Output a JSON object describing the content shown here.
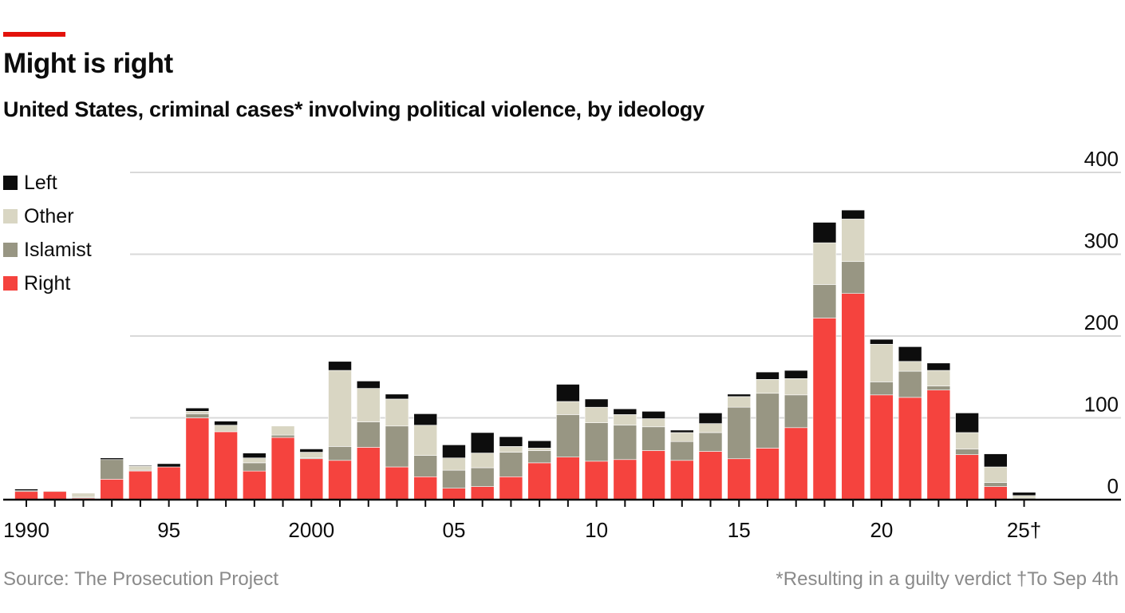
{
  "title": "Might is right",
  "subtitle": "United States, criminal cases* involving political violence, by ideology",
  "source": "Source: The Prosecution Project",
  "footnote": "*Resulting in a guilty verdict †To Sep 4th",
  "colors": {
    "Left": "#0d0d0d",
    "Other": "#d9d6c3",
    "Islamist": "#989683",
    "Right": "#f5433e",
    "accent": "#e3120b"
  },
  "chart_data": {
    "type": "bar",
    "stacked": true,
    "title": "Might is right",
    "subtitle": "United States, criminal cases* involving political violence, by ideology",
    "xlabel": "",
    "ylabel": "",
    "ylim": [
      0,
      400
    ],
    "y_ticks": [
      0,
      100,
      200,
      300,
      400
    ],
    "x_tick_years": [
      1990,
      1995,
      2000,
      2005,
      2010,
      2015,
      2020,
      2025
    ],
    "x_tick_labels": [
      "1990",
      "95",
      "2000",
      "05",
      "10",
      "15",
      "20",
      "25†"
    ],
    "grid": true,
    "legend_placement": "top-left",
    "legend": [
      "Left",
      "Other",
      "Islamist",
      "Right"
    ],
    "categories": [
      1990,
      1991,
      1992,
      1993,
      1994,
      1995,
      1996,
      1997,
      1998,
      1999,
      2000,
      2001,
      2002,
      2003,
      2004,
      2005,
      2006,
      2007,
      2008,
      2009,
      2010,
      2011,
      2012,
      2013,
      2014,
      2015,
      2016,
      2017,
      2018,
      2019,
      2020,
      2021,
      2022,
      2023,
      2024,
      2025
    ],
    "series": [
      {
        "name": "Right",
        "values": [
          10,
          10,
          2,
          25,
          35,
          40,
          100,
          83,
          35,
          76,
          50,
          48,
          64,
          40,
          28,
          14,
          16,
          28,
          45,
          52,
          47,
          49,
          60,
          48,
          59,
          50,
          63,
          88,
          222,
          252,
          128,
          125,
          134,
          55,
          16,
          0
        ]
      },
      {
        "name": "Islamist",
        "values": [
          1,
          0,
          1,
          24,
          1,
          0,
          5,
          0,
          10,
          3,
          1,
          17,
          31,
          50,
          26,
          22,
          23,
          30,
          15,
          52,
          47,
          42,
          29,
          23,
          23,
          63,
          67,
          40,
          41,
          39,
          16,
          32,
          5,
          7,
          5,
          2
        ]
      },
      {
        "name": "Other",
        "values": [
          0,
          1,
          5,
          0,
          5,
          0,
          3,
          8,
          6,
          11,
          7,
          93,
          41,
          33,
          37,
          15,
          18,
          7,
          3,
          16,
          19,
          13,
          10,
          11,
          11,
          13,
          17,
          20,
          51,
          52,
          46,
          12,
          19,
          20,
          19,
          3
        ]
      },
      {
        "name": "Left",
        "values": [
          2,
          0,
          0,
          2,
          1,
          4,
          4,
          5,
          6,
          0,
          4,
          11,
          9,
          6,
          14,
          16,
          25,
          12,
          9,
          21,
          10,
          7,
          9,
          3,
          13,
          3,
          9,
          10,
          25,
          11,
          6,
          18,
          9,
          24,
          16,
          4
        ]
      }
    ]
  }
}
